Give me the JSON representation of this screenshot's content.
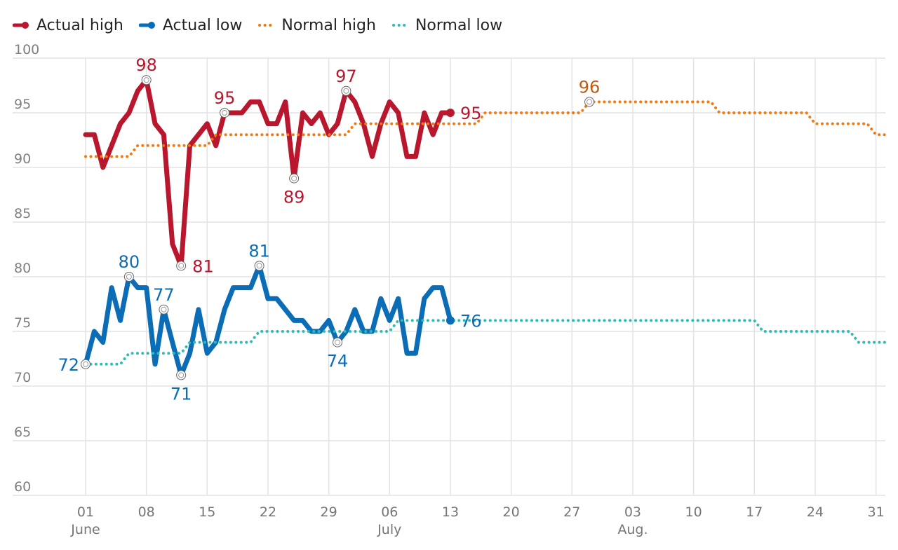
{
  "legend": {
    "actual_high": "Actual high",
    "actual_low": "Actual low",
    "normal_high": "Normal high",
    "normal_low": "Normal low"
  },
  "colors": {
    "actual_high": "#b8172e",
    "actual_low": "#0a6db5",
    "normal_high": "#f07a0f",
    "normal_low": "#2ebdb5",
    "label_normal_high": "#c25a10",
    "grid": "#e3e3e3"
  },
  "chart_data": {
    "type": "line",
    "title": "",
    "xlabel": "",
    "ylabel": "",
    "ylim": [
      60,
      100
    ],
    "y_ticks": [
      60,
      65,
      70,
      75,
      80,
      85,
      90,
      95,
      100
    ],
    "x_range_days": [
      0,
      92
    ],
    "x_ticks": [
      {
        "day": 0,
        "label": "01",
        "month": "June"
      },
      {
        "day": 7,
        "label": "08"
      },
      {
        "day": 14,
        "label": "15"
      },
      {
        "day": 21,
        "label": "22"
      },
      {
        "day": 28,
        "label": "29"
      },
      {
        "day": 35,
        "label": "06",
        "month": "July"
      },
      {
        "day": 42,
        "label": "13"
      },
      {
        "day": 49,
        "label": "20"
      },
      {
        "day": 56,
        "label": "27"
      },
      {
        "day": 63,
        "label": "03",
        "month": "Aug."
      },
      {
        "day": 70,
        "label": "10"
      },
      {
        "day": 77,
        "label": "17"
      },
      {
        "day": 84,
        "label": "24"
      },
      {
        "day": 91,
        "label": "31"
      }
    ],
    "series": [
      {
        "name": "Actual high",
        "key": "actual_high",
        "style": "solid",
        "start_day": 0,
        "values": [
          93,
          93,
          90,
          92,
          94,
          95,
          97,
          98,
          94,
          93,
          83,
          81,
          92,
          93,
          94,
          92,
          95,
          95,
          95,
          96,
          96,
          94,
          94,
          96,
          89,
          95,
          94,
          95,
          93,
          94,
          97,
          96,
          94,
          91,
          94,
          96,
          95,
          91,
          91,
          95,
          93,
          95,
          95
        ],
        "end_label": "95",
        "annotations": [
          {
            "day": 7,
            "value": 98,
            "label": "98",
            "pos": "above"
          },
          {
            "day": 11,
            "value": 81,
            "label": "81",
            "pos": "right"
          },
          {
            "day": 16,
            "value": 95,
            "label": "95",
            "pos": "above"
          },
          {
            "day": 24,
            "value": 89,
            "label": "89",
            "pos": "below"
          },
          {
            "day": 30,
            "value": 97,
            "label": "97",
            "pos": "above"
          }
        ]
      },
      {
        "name": "Actual low",
        "key": "actual_low",
        "style": "solid",
        "start_day": 0,
        "values": [
          72,
          75,
          74,
          79,
          76,
          80,
          79,
          79,
          72,
          77,
          74,
          71,
          73,
          77,
          73,
          74,
          77,
          79,
          79,
          79,
          81,
          78,
          78,
          77,
          76,
          76,
          75,
          75,
          76,
          74,
          75,
          77,
          75,
          75,
          78,
          76,
          78,
          73,
          73,
          78,
          79,
          79,
          76
        ],
        "end_label": "76",
        "annotations": [
          {
            "day": 0,
            "value": 72,
            "label": "72",
            "pos": "left"
          },
          {
            "day": 5,
            "value": 80,
            "label": "80",
            "pos": "above"
          },
          {
            "day": 9,
            "value": 77,
            "label": "77",
            "pos": "above"
          },
          {
            "day": 11,
            "value": 71,
            "label": "71",
            "pos": "below"
          },
          {
            "day": 20,
            "value": 81,
            "label": "81",
            "pos": "above"
          },
          {
            "day": 29,
            "value": 74,
            "label": "74",
            "pos": "below"
          }
        ]
      },
      {
        "name": "Normal high",
        "key": "normal_high",
        "style": "dotted",
        "steps": [
          {
            "from": 0,
            "to": 5,
            "value": 91
          },
          {
            "from": 6,
            "to": 14,
            "value": 92
          },
          {
            "from": 15,
            "to": 30,
            "value": 93
          },
          {
            "from": 31,
            "to": 45,
            "value": 94
          },
          {
            "from": 46,
            "to": 57,
            "value": 95
          },
          {
            "from": 58,
            "to": 72,
            "value": 96
          },
          {
            "from": 73,
            "to": 83,
            "value": 95
          },
          {
            "from": 84,
            "to": 90,
            "value": 94
          },
          {
            "from": 91,
            "to": 92,
            "value": 93
          }
        ],
        "annotations": [
          {
            "day": 58,
            "value": 96,
            "label": "96",
            "pos": "above"
          }
        ]
      },
      {
        "name": "Normal low",
        "key": "normal_low",
        "style": "dotted",
        "steps": [
          {
            "from": 0,
            "to": 4,
            "value": 72
          },
          {
            "from": 5,
            "to": 11,
            "value": 73
          },
          {
            "from": 12,
            "to": 19,
            "value": 74
          },
          {
            "from": 20,
            "to": 35,
            "value": 75
          },
          {
            "from": 36,
            "to": 77,
            "value": 76
          },
          {
            "from": 78,
            "to": 88,
            "value": 75
          },
          {
            "from": 89,
            "to": 92,
            "value": 74
          }
        ]
      }
    ]
  }
}
